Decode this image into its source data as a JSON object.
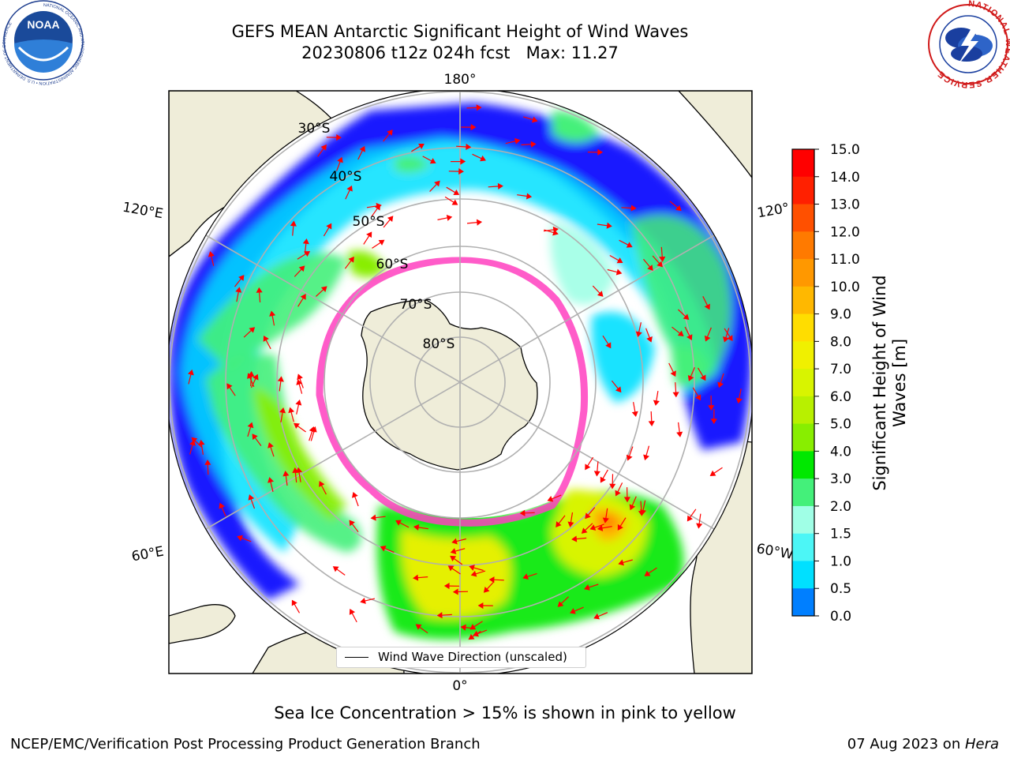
{
  "title": {
    "line1": "GEFS MEAN Antarctic Significant Height of Wind Waves",
    "line2": "20230806 t12z 024h fcst   Max: 11.27"
  },
  "map": {
    "projection": "south-polar-stereographic",
    "longitude_labels": {
      "top": "180°",
      "bottom": "0°",
      "upper_left": "120°E",
      "lower_left": "60°E",
      "upper_right": "120°",
      "lower_right": "60°W"
    },
    "latitude_labels": [
      "30°S",
      "40°S",
      "50°S",
      "60°S",
      "70°S",
      "80°S"
    ],
    "land_color": "#efedd9",
    "sea_ice_color": "#ff40c0",
    "arrow_color": "#ff0000",
    "legend_label": "Wind Wave Direction (unscaled)"
  },
  "colorbar": {
    "label_line1": "Significant Height of Wind",
    "label_line2": "Waves [m]",
    "ticks": [
      "15.0",
      "14.0",
      "13.0",
      "12.0",
      "11.0",
      "10.0",
      "9.0",
      "8.0",
      "7.0",
      "6.0",
      "5.0",
      "4.0",
      "3.0",
      "2.0",
      "1.5",
      "1.0",
      "0.5",
      "0.0"
    ],
    "colors": [
      "#ff0000",
      "#ff2000",
      "#ff5000",
      "#ff7a00",
      "#ff9800",
      "#ffb800",
      "#ffdd00",
      "#f0f000",
      "#d8f400",
      "#b8f000",
      "#88ee00",
      "#00e800",
      "#44f07a",
      "#a0ffe6",
      "#4cf6f6",
      "#00e0ff",
      "#007fff",
      "#0000ff"
    ]
  },
  "footnote": "Sea Ice Concentration > 15% is shown in pink to yellow",
  "credits": {
    "left": "NCEP/EMC/Verification Post Processing Product Generation Branch",
    "right_date": "07 Aug 2023 on ",
    "right_machine": "Hera"
  },
  "logos": {
    "left": "NOAA",
    "left_ring_text": "NATIONAL OCEANIC AND ATMOSPHERIC ADMINISTRATION • U.S. DEPARTMENT OF COMMERCE",
    "right_ring_text": "NATIONAL WEATHER SERVICE"
  }
}
